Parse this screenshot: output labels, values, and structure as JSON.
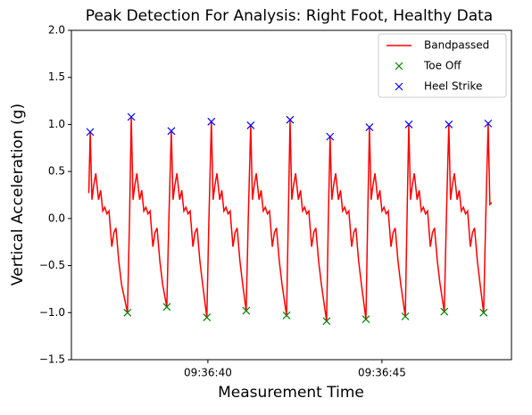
{
  "chart_data": {
    "type": "line",
    "title": "Peak Detection For Analysis: Right Foot, Healthy Data",
    "x_label": "Measurement Time",
    "y_label": "Vertical Acceleration (g)",
    "xlim": [
      36.08,
      48.72
    ],
    "xticks": [
      {
        "value": 40,
        "label": "09:36:40"
      },
      {
        "value": 45,
        "label": "09:36:45"
      }
    ],
    "ylim": [
      -1.5,
      2.0
    ],
    "yticks": [
      {
        "value": -1.5,
        "label": "−1.5"
      },
      {
        "value": -1.0,
        "label": "−1.0"
      },
      {
        "value": -0.5,
        "label": "−0.5"
      },
      {
        "value": 0,
        "label": "0.0"
      },
      {
        "value": 0.5,
        "label": "0.5"
      },
      {
        "value": 1.0,
        "label": "1.0"
      },
      {
        "value": 1.5,
        "label": "1.5"
      },
      {
        "value": 2.0,
        "label": "2.0"
      }
    ],
    "grid": false,
    "legend": "upper right",
    "series": [
      {
        "name": "Bandpassed",
        "color": "#ff0000",
        "style": "line",
        "x": [
          36.58,
          36.62,
          36.67,
          36.72,
          36.78,
          36.86,
          36.92,
          36.98,
          37.04,
          37.1,
          37.16,
          37.24,
          37.3,
          37.36,
          37.44,
          37.52,
          37.69,
          37.75,
          37.8,
          37.85,
          37.9,
          37.96,
          38.04,
          38.1,
          38.16,
          38.22,
          38.28,
          38.34,
          38.42,
          38.48,
          38.54,
          38.62,
          38.7,
          38.82,
          38.88,
          38.95,
          39.0,
          39.05,
          39.11,
          39.19,
          39.25,
          39.31,
          39.37,
          39.43,
          39.49,
          39.57,
          39.63,
          39.69,
          39.77,
          39.85,
          39.97,
          40.03,
          40.1,
          40.15,
          40.2,
          40.26,
          40.34,
          40.4,
          40.46,
          40.52,
          40.58,
          40.64,
          40.72,
          40.78,
          40.84,
          40.92,
          41.0,
          41.1,
          41.16,
          41.23,
          41.28,
          41.33,
          41.39,
          41.47,
          41.53,
          41.59,
          41.65,
          41.71,
          41.77,
          41.85,
          41.91,
          41.97,
          42.05,
          42.13,
          42.26,
          42.31,
          42.36,
          42.41,
          42.46,
          42.52,
          42.6,
          42.66,
          42.72,
          42.78,
          42.84,
          42.9,
          42.98,
          43.04,
          43.1,
          43.18,
          43.26,
          43.41,
          43.46,
          43.51,
          43.56,
          43.61,
          43.67,
          43.75,
          43.81,
          43.87,
          43.93,
          43.99,
          44.05,
          44.13,
          44.19,
          44.25,
          44.33,
          44.41,
          44.54,
          44.59,
          44.64,
          44.69,
          44.74,
          44.8,
          44.88,
          44.94,
          45.0,
          45.06,
          45.12,
          45.18,
          45.26,
          45.32,
          45.38,
          45.46,
          45.54,
          45.67,
          45.72,
          45.77,
          45.82,
          45.87,
          45.93,
          46.01,
          46.07,
          46.13,
          46.19,
          46.25,
          46.31,
          46.39,
          46.45,
          46.51,
          46.59,
          46.67,
          46.79,
          46.85,
          46.92,
          46.97,
          47.02,
          47.08,
          47.16,
          47.22,
          47.28,
          47.34,
          47.4,
          47.46,
          47.54,
          47.6,
          47.66,
          47.74,
          47.82,
          47.92,
          47.98,
          48.05,
          48.1,
          48.15
        ],
        "values": [
          0.27,
          0.92,
          0.2,
          0.35,
          0.48,
          0.2,
          0.3,
          0.08,
          0.12,
          0.05,
          0.08,
          -0.3,
          -0.15,
          -0.1,
          -0.45,
          -0.7,
          -1.0,
          0.0,
          1.08,
          0.2,
          0.35,
          0.48,
          0.2,
          0.3,
          0.08,
          0.12,
          0.05,
          0.08,
          -0.3,
          -0.15,
          -0.1,
          -0.45,
          -0.7,
          -0.94,
          0.0,
          0.93,
          0.2,
          0.35,
          0.48,
          0.2,
          0.3,
          0.08,
          0.12,
          0.05,
          0.08,
          -0.3,
          -0.15,
          -0.1,
          -0.45,
          -0.7,
          -1.05,
          0.0,
          1.03,
          0.2,
          0.35,
          0.48,
          0.2,
          0.3,
          0.08,
          0.12,
          0.05,
          0.08,
          -0.3,
          -0.15,
          -0.1,
          -0.45,
          -0.7,
          -0.98,
          0.0,
          0.99,
          0.2,
          0.35,
          0.48,
          0.2,
          0.3,
          0.08,
          0.12,
          0.05,
          0.08,
          -0.3,
          -0.15,
          -0.1,
          -0.45,
          -0.7,
          -1.03,
          0.0,
          1.05,
          0.2,
          0.35,
          0.48,
          0.2,
          0.3,
          0.08,
          0.12,
          0.05,
          0.08,
          -0.3,
          -0.15,
          -0.1,
          -0.45,
          -0.7,
          -1.09,
          0.0,
          0.87,
          0.2,
          0.35,
          0.48,
          0.2,
          0.3,
          0.08,
          0.12,
          0.05,
          0.08,
          -0.3,
          -0.15,
          -0.1,
          -0.45,
          -0.7,
          -1.07,
          0.0,
          0.97,
          0.2,
          0.35,
          0.48,
          0.2,
          0.3,
          0.08,
          0.12,
          0.05,
          0.08,
          -0.3,
          -0.15,
          -0.1,
          -0.45,
          -0.7,
          -1.04,
          0.0,
          1.0,
          0.2,
          0.35,
          0.48,
          0.2,
          0.3,
          0.08,
          0.12,
          0.05,
          0.08,
          -0.3,
          -0.15,
          -0.1,
          -0.45,
          -0.7,
          -0.99,
          0.0,
          1.0,
          0.2,
          0.35,
          0.48,
          0.2,
          0.3,
          0.08,
          0.12,
          0.05,
          0.08,
          -0.3,
          -0.15,
          -0.1,
          -0.45,
          -0.7,
          -1.0,
          0.0,
          1.01,
          0.15,
          0.17
        ]
      },
      {
        "name": "Toe Off",
        "color": "#008000",
        "style": "x",
        "x": [
          37.69,
          38.82,
          39.97,
          41.1,
          42.26,
          43.41,
          44.54,
          45.67,
          46.79,
          47.92
        ],
        "values": [
          -1.0,
          -0.94,
          -1.05,
          -0.98,
          -1.03,
          -1.09,
          -1.07,
          -1.04,
          -0.99,
          -1.0
        ]
      },
      {
        "name": "Heel Strike",
        "color": "#0000ff",
        "style": "x",
        "x": [
          36.62,
          37.8,
          38.95,
          40.1,
          41.23,
          42.36,
          43.51,
          44.64,
          45.77,
          46.92,
          48.05
        ],
        "values": [
          0.92,
          1.08,
          0.93,
          1.03,
          0.99,
          1.05,
          0.87,
          0.97,
          1.0,
          1.0,
          1.01
        ]
      }
    ]
  }
}
